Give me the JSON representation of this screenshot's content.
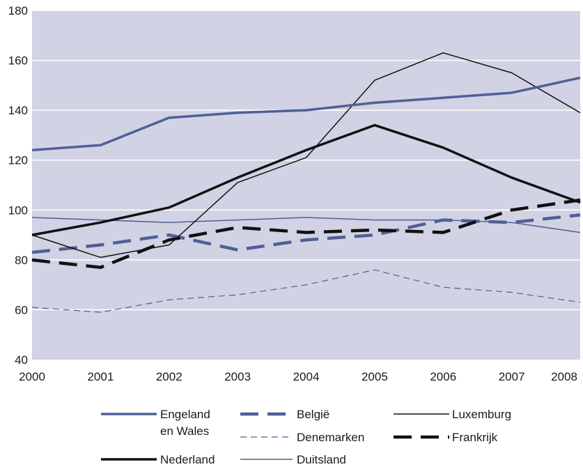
{
  "chart_data": {
    "type": "line",
    "x": [
      2000,
      2001,
      2002,
      2003,
      2004,
      2005,
      2006,
      2007,
      2008
    ],
    "xlim": [
      2000,
      2008
    ],
    "ylim": [
      40,
      180
    ],
    "yticks": [
      40,
      60,
      80,
      100,
      120,
      140,
      160,
      180
    ],
    "grid": "horizontal",
    "legend_position": "bottom",
    "series": [
      {
        "name": "Engeland\nen Wales",
        "values": [
          124,
          126,
          137,
          139,
          140,
          143,
          145,
          147,
          153
        ],
        "color": "#4f5f97",
        "style": "solid-thick"
      },
      {
        "name": "België",
        "values": [
          83,
          86,
          90,
          84,
          88,
          90,
          96,
          95,
          98
        ],
        "color": "#4f5f97",
        "style": "dashed-thick"
      },
      {
        "name": "Luxemburg",
        "values": [
          90,
          81,
          86,
          111,
          121,
          152,
          163,
          155,
          139
        ],
        "color": "#111111",
        "style": "solid-thin"
      },
      {
        "name": "Denemarken",
        "values": [
          61,
          59,
          64,
          66,
          70,
          76,
          69,
          67,
          63
        ],
        "color": "#4f5f97",
        "style": "dashed-thin"
      },
      {
        "name": "Frankrijk",
        "values": [
          80,
          77,
          88,
          93,
          91,
          92,
          91,
          100,
          104
        ],
        "color": "#111111",
        "style": "dashed-thick"
      },
      {
        "name": "Nederland",
        "values": [
          90,
          95,
          101,
          113,
          124,
          134,
          125,
          113,
          103
        ],
        "color": "#111111",
        "style": "solid-thick"
      },
      {
        "name": "Duitsland",
        "values": [
          97,
          96,
          95,
          96,
          97,
          96,
          96,
          95,
          91
        ],
        "color": "#4f5f97",
        "style": "solid-thin"
      }
    ]
  },
  "colors": {
    "plot_background": "#d1d3e4",
    "gridline": "#ffffff"
  }
}
